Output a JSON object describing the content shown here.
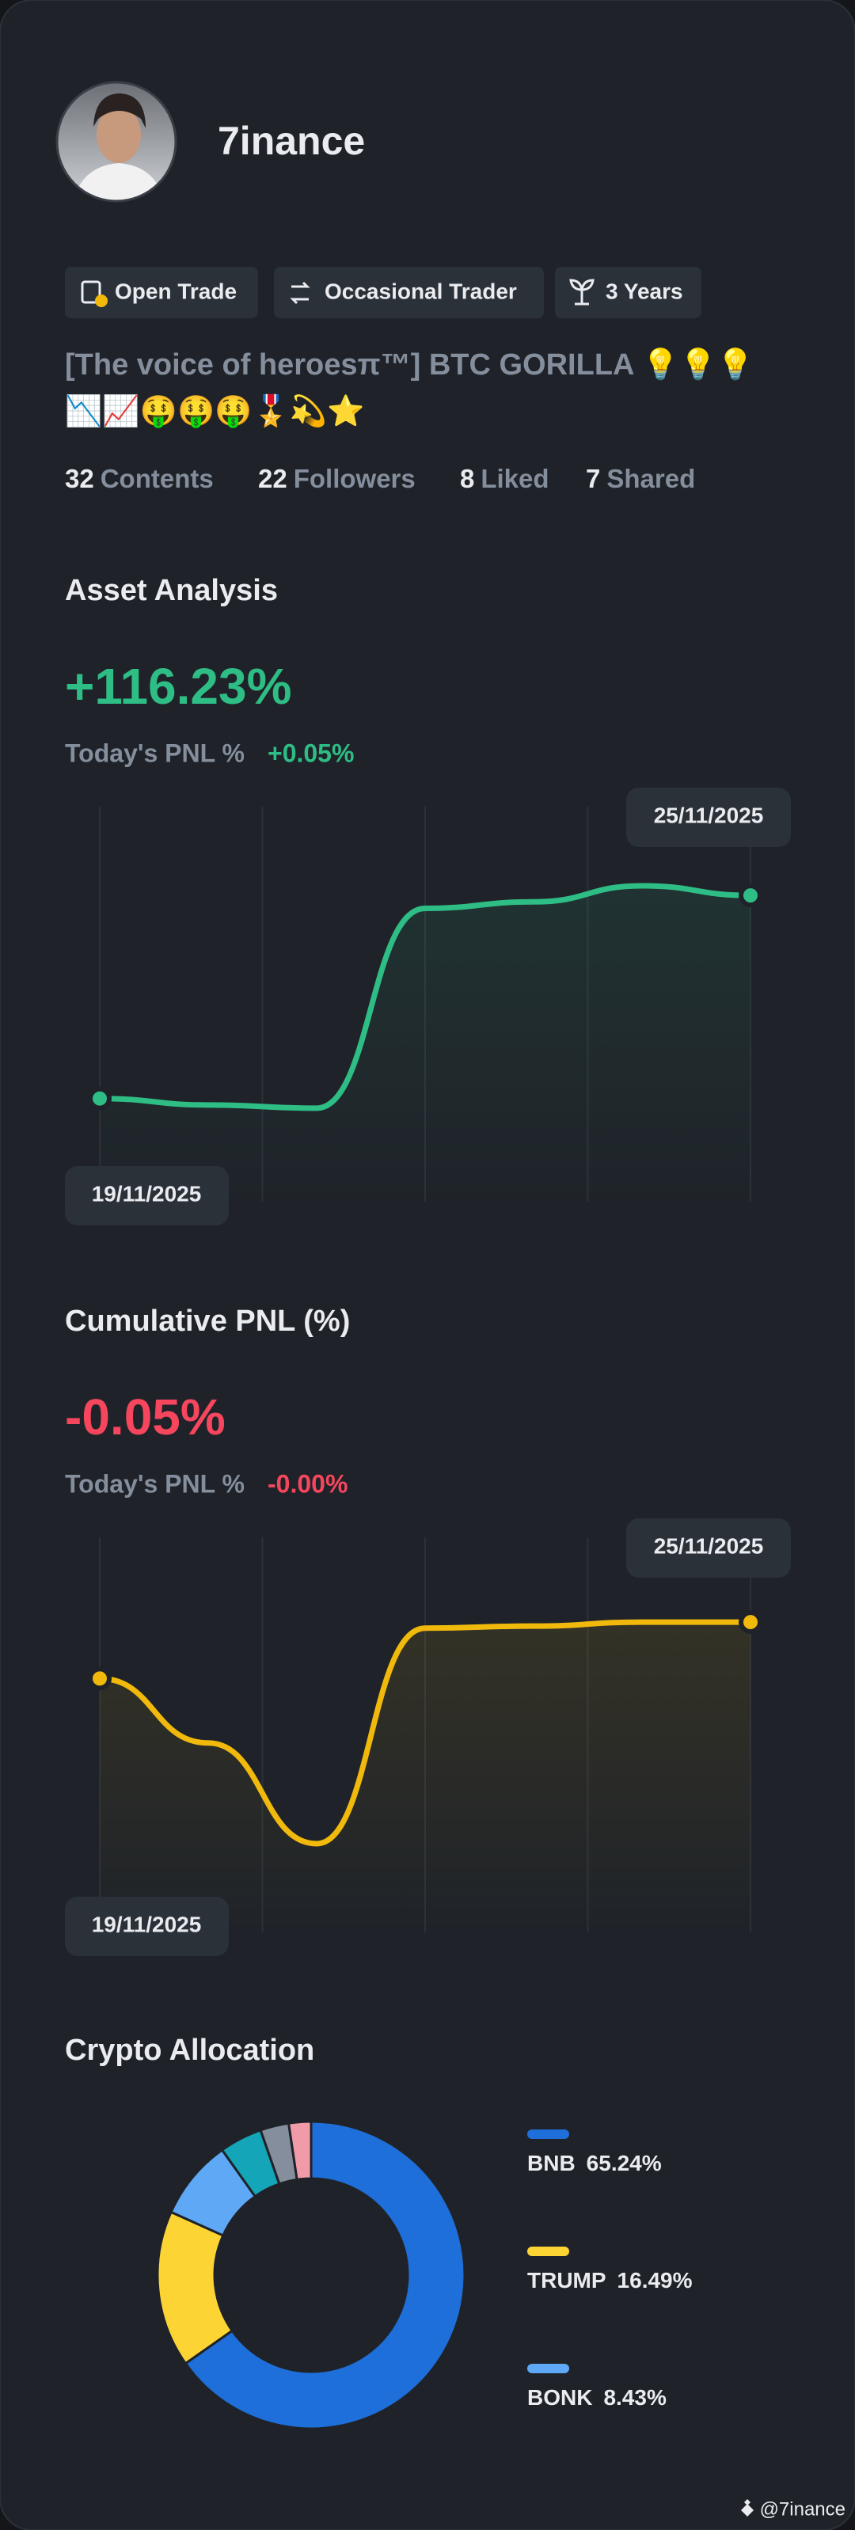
{
  "profile": {
    "name": "7inance",
    "tags": [
      "Open Trade",
      "Occasional Trader",
      "3 Years"
    ],
    "bio": [
      "[The voice of heroesπ™] BTC GORILLA 💡💡💡",
      "📉📈🤑🤑🤑🎖️💫⭐"
    ],
    "stats": [
      {
        "count": 32,
        "label": "Contents"
      },
      {
        "count": 22,
        "label": "Followers"
      },
      {
        "count": 8,
        "label": "Liked"
      },
      {
        "count": 7,
        "label": "Shared"
      }
    ]
  },
  "chart_data": [
    {
      "type": "line",
      "title": "Asset Analysis",
      "headline": "+116.23%",
      "today_label": "Today's PNL %",
      "today_value": "+0.05%",
      "categories": [
        "19/11/2025",
        null,
        null,
        null,
        null,
        null,
        "25/11/2025"
      ],
      "series": [
        {
          "color": "#2ebd85",
          "values": [
            115.6,
            115.58,
            115.57,
            116.19,
            116.21,
            116.26,
            116.23
          ]
        }
      ],
      "ylim": [
        115.28,
        116.53
      ]
    },
    {
      "type": "line",
      "title": "Cumulative PNL (%)",
      "headline": "-0.05%",
      "today_label": "Today's PNL %",
      "today_value": "-0.00%",
      "categories": [
        "19/11/2025",
        null,
        null,
        null,
        null,
        null,
        "25/11/2025"
      ],
      "series": [
        {
          "color": "#f0b90b",
          "values": [
            -0.19,
            -0.35,
            -0.6,
            -0.065,
            -0.06,
            -0.05,
            -0.05
          ]
        }
      ],
      "ylim": [
        -0.82,
        0.18
      ]
    },
    {
      "type": "pie",
      "title": "Crypto Allocation",
      "donut": true,
      "categories": [
        "BNB",
        "TRUMP",
        "BONK",
        null,
        null,
        null
      ],
      "values": [
        65.24,
        16.49,
        8.43,
        4.5,
        3.0,
        2.34
      ],
      "value_labels": [
        "65.24%",
        "16.49%",
        "8.43%",
        null,
        null,
        null
      ],
      "colors": [
        "#1e6fd9",
        "#fcd535",
        "#5ea8f5",
        "#14a5b8",
        "#848e9c",
        "#f29ba8"
      ]
    }
  ],
  "watermark": "@7inance"
}
